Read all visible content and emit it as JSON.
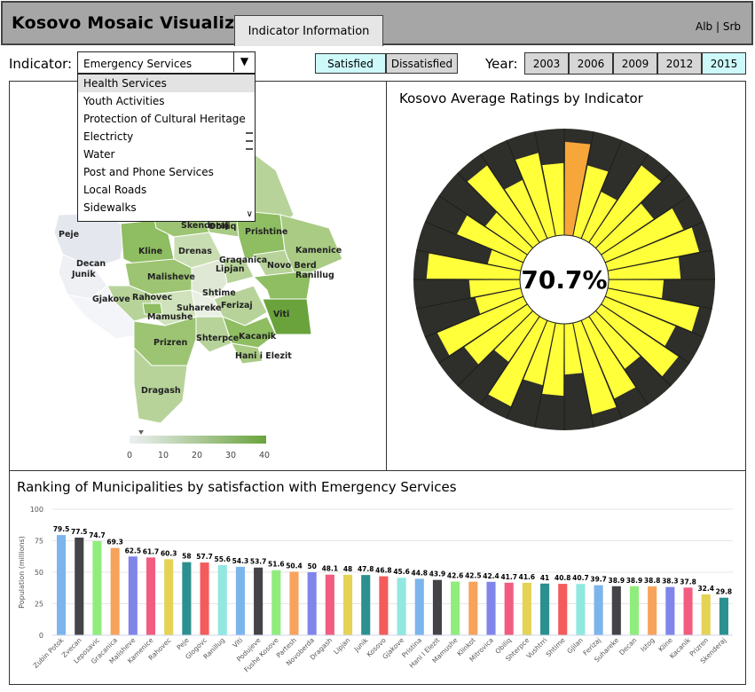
{
  "header": {
    "title": "Kosovo Mosaic Visualizer",
    "info_tab": "Indicator Information",
    "language": "Alb | Srb"
  },
  "indicator": {
    "label": "Indicator:",
    "selected": "Emergency Services",
    "options": [
      "Health Services",
      "Youth Activities",
      "Protection of Cultural Heritage",
      "Electricty",
      "Water",
      "Post and Phone Services",
      "Local Roads",
      "Sidewalks"
    ]
  },
  "toggles": {
    "satisfied": "Satisfied",
    "dissatisfied": "Dissatisfied",
    "active": "Satisfied"
  },
  "years": {
    "label": "Year:",
    "options": [
      "2003",
      "2006",
      "2009",
      "2012",
      "2015"
    ],
    "active": "2015"
  },
  "map": {
    "municipalities": [
      "Peje",
      "Decan",
      "Junik",
      "Gjakove",
      "Kline",
      "Drenas",
      "Malisheve",
      "Rahovec",
      "Suhareke",
      "Mamushe",
      "Shtime",
      "Ferizaj",
      "Lipjan",
      "Graqanica",
      "Prishtine",
      "Obiliq",
      "Skenderaj",
      "Kamenice",
      "Novo Berd",
      "Ranillug",
      "Viti",
      "Kacanik",
      "Hani i Elezit",
      "Shterpce",
      "Prizren",
      "Dragash"
    ],
    "legend_ticks": [
      "0",
      "10",
      "20",
      "30",
      "40"
    ],
    "colors": {
      "low": "#eef0f4",
      "high": "#6aa33c"
    }
  },
  "radial": {
    "title": "Kosovo Average Ratings by Indicator",
    "center_value": "70.7%",
    "colors": {
      "background": "#2e2e2a",
      "bar": "#ffff3a",
      "highlight": "#f7a63a"
    },
    "values": [
      0.44,
      0.34,
      0.24,
      0.44,
      0.3,
      0.4,
      0.44,
      0.34,
      0.26,
      0.44,
      0.36,
      0.44,
      0.3,
      0.4,
      0.44,
      0.24,
      0.34,
      0.3,
      0.44,
      0.26,
      0.36,
      0.44,
      0.22,
      0.24,
      0.44,
      0.16,
      0.34,
      0.24,
      0.44,
      0.3,
      0.4,
      0.34
    ],
    "highlight_index": 0
  },
  "bars": {
    "title": "Ranking of Municipalities by satisfaction with Emergency Services",
    "chart_data": {
      "type": "bar",
      "ylabel": "Population (millions)",
      "ylim": [
        0,
        100
      ],
      "yticks": [
        0,
        25,
        50,
        75,
        100
      ],
      "categories": [
        "Zubin Potok",
        "Zvecan",
        "Leposavic",
        "Gracanica",
        "Malisheve",
        "Kamenice",
        "Rahovec",
        "Peje",
        "Glogovc",
        "Ranillug",
        "Viti",
        "Podujeve",
        "Fushe Kosove",
        "Partesh",
        "Novoberda",
        "Dragash",
        "Lipjan",
        "Junik",
        "Kosovo",
        "Gjakove",
        "Pristina",
        "Hani I Elezit",
        "Mamushe",
        "Klinkot",
        "Mitrovica",
        "Obiliq",
        "Shterpce",
        "Vushtrri",
        "Shtime",
        "Gjilan",
        "Ferizaj",
        "Suhareke",
        "Decan",
        "Istog",
        "Kline",
        "Kacanik",
        "Prizren",
        "Skenderaj"
      ],
      "values": [
        79.5,
        77.5,
        74.7,
        69.3,
        62.5,
        61.7,
        60.3,
        58,
        57.7,
        55.6,
        54.3,
        53.7,
        51.6,
        50.4,
        50,
        48.1,
        48,
        47.8,
        46.8,
        45.6,
        44.8,
        43.9,
        42.6,
        42.5,
        42.4,
        41.7,
        41.6,
        41,
        40.8,
        40.7,
        39.7,
        38.9,
        38.9,
        38.8,
        38.3,
        37.8,
        32.4,
        29.8
      ],
      "value_labels": [
        "79.5",
        "77.5",
        "74.7",
        "69.3",
        "62.5",
        "61.7",
        "60.3",
        "58",
        "57.7",
        "55.6",
        "54.3",
        "53.7",
        "51.6",
        "50.4",
        "50",
        "48.1",
        "48",
        "47.8",
        "46.8",
        "45.6",
        "44.8",
        "43.9",
        "42.6",
        "42.5",
        "42.4",
        "41.7",
        "41.6",
        "41",
        "40.8",
        "40.7",
        "39.7",
        "38.9",
        "38.9",
        "38.8",
        "38.3",
        "37.8",
        "32.4",
        "29.8"
      ],
      "colors": [
        "#7cb5ec",
        "#434348",
        "#90ed7d",
        "#f7a35c",
        "#8085e9",
        "#f15c80",
        "#e4d354",
        "#2b908f",
        "#f45b5b",
        "#91e8e1"
      ]
    }
  }
}
